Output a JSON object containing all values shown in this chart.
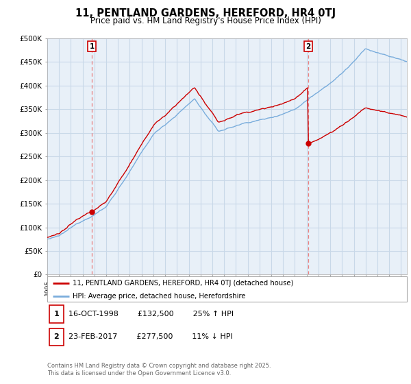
{
  "title": "11, PENTLAND GARDENS, HEREFORD, HR4 0TJ",
  "subtitle": "Price paid vs. HM Land Registry's House Price Index (HPI)",
  "ylim": [
    0,
    500000
  ],
  "yticks": [
    0,
    50000,
    100000,
    150000,
    200000,
    250000,
    300000,
    350000,
    400000,
    450000,
    500000
  ],
  "ytick_labels": [
    "£0",
    "£50K",
    "£100K",
    "£150K",
    "£200K",
    "£250K",
    "£300K",
    "£350K",
    "£400K",
    "£450K",
    "£500K"
  ],
  "sale1_date": 1998.79,
  "sale1_price": 132500,
  "sale2_date": 2017.14,
  "sale2_price": 277500,
  "legend_property": "11, PENTLAND GARDENS, HEREFORD, HR4 0TJ (detached house)",
  "legend_hpi": "HPI: Average price, detached house, Herefordshire",
  "footer": "Contains HM Land Registry data © Crown copyright and database right 2025.\nThis data is licensed under the Open Government Licence v3.0.",
  "property_color": "#cc0000",
  "hpi_color": "#7aaddc",
  "vline_color": "#e88080",
  "background_color": "#ffffff",
  "plot_bg_color": "#e8f0f8",
  "grid_color": "#c8d8e8"
}
